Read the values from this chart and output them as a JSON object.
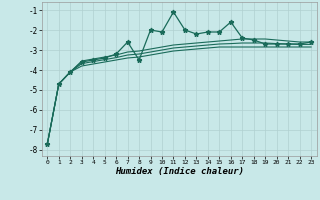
{
  "xlabel": "Humidex (Indice chaleur)",
  "bg_color": "#c8e8e8",
  "line_color": "#1a6b5a",
  "grid_color": "#b0d0d0",
  "xlim": [
    -0.5,
    23.5
  ],
  "ylim": [
    -8.3,
    -0.6
  ],
  "yticks": [
    -8,
    -7,
    -6,
    -5,
    -4,
    -3,
    -2,
    -1
  ],
  "xticks": [
    0,
    1,
    2,
    3,
    4,
    5,
    6,
    7,
    8,
    9,
    10,
    11,
    12,
    13,
    14,
    15,
    16,
    17,
    18,
    19,
    20,
    21,
    22,
    23
  ],
  "main_x": [
    0,
    1,
    2,
    3,
    4,
    5,
    6,
    7,
    8,
    9,
    10,
    11,
    12,
    13,
    14,
    15,
    16,
    17,
    18,
    19,
    20,
    21,
    22,
    23
  ],
  "main_y": [
    -7.7,
    -4.7,
    -4.1,
    -3.6,
    -3.5,
    -3.4,
    -3.2,
    -2.6,
    -3.5,
    -2.0,
    -2.1,
    -1.1,
    -2.0,
    -2.2,
    -2.1,
    -2.1,
    -1.6,
    -2.4,
    -2.5,
    -2.7,
    -2.7,
    -2.7,
    -2.7,
    -2.6
  ],
  "upper_x": [
    0,
    1,
    2,
    3,
    4,
    5,
    6,
    7,
    8,
    9,
    10,
    11,
    12,
    13,
    14,
    15,
    16,
    17,
    18,
    19,
    20,
    21,
    22,
    23
  ],
  "upper_y": [
    -7.7,
    -4.7,
    -4.1,
    -3.55,
    -3.45,
    -3.35,
    -3.25,
    -3.1,
    -3.05,
    -2.95,
    -2.85,
    -2.75,
    -2.7,
    -2.65,
    -2.6,
    -2.55,
    -2.5,
    -2.45,
    -2.45,
    -2.45,
    -2.5,
    -2.55,
    -2.6,
    -2.6
  ],
  "lower_x": [
    0,
    1,
    2,
    3,
    4,
    5,
    6,
    7,
    8,
    9,
    10,
    11,
    12,
    13,
    14,
    15,
    16,
    17,
    18,
    19,
    20,
    21,
    22,
    23
  ],
  "lower_y": [
    -7.7,
    -4.7,
    -4.1,
    -3.8,
    -3.7,
    -3.6,
    -3.5,
    -3.4,
    -3.35,
    -3.25,
    -3.15,
    -3.05,
    -3.0,
    -2.95,
    -2.9,
    -2.85,
    -2.85,
    -2.85,
    -2.85,
    -2.85,
    -2.85,
    -2.85,
    -2.85,
    -2.85
  ],
  "mid_x": [
    0,
    1,
    2,
    3,
    4,
    5,
    6,
    7,
    8,
    9,
    10,
    11,
    12,
    13,
    14,
    15,
    16,
    17,
    18,
    19,
    20,
    21,
    22,
    23
  ],
  "mid_y": [
    -7.7,
    -4.7,
    -4.1,
    -3.68,
    -3.58,
    -3.48,
    -3.38,
    -3.25,
    -3.2,
    -3.1,
    -3.0,
    -2.9,
    -2.85,
    -2.8,
    -2.75,
    -2.7,
    -2.68,
    -2.65,
    -2.65,
    -2.65,
    -2.68,
    -2.7,
    -2.72,
    -2.72
  ]
}
